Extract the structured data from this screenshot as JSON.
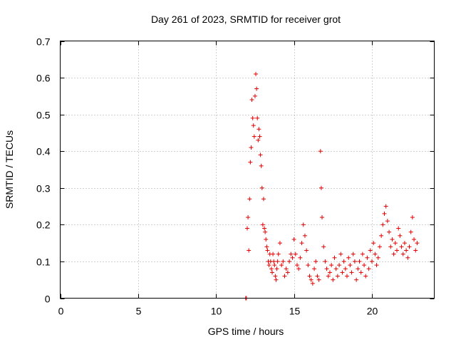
{
  "chart_data": {
    "type": "scatter",
    "title": "Day 261 of 2023, SRMTID for receiver grot",
    "xlabel": "GPS time / hours",
    "ylabel": "SRMTID / TECUs",
    "xlim": [
      0,
      24
    ],
    "ylim": [
      0,
      0.7
    ],
    "xticks": [
      0,
      5,
      10,
      15,
      20
    ],
    "yticks": [
      0,
      0.1,
      0.2,
      0.3,
      0.4,
      0.5,
      0.6,
      0.7
    ],
    "xtick_labels": [
      "0",
      "5",
      "10",
      "15",
      "20"
    ],
    "ytick_labels": [
      "0",
      "0.1",
      "0.2",
      "0.3",
      "0.4",
      "0.5",
      "0.6",
      "0.7"
    ],
    "grid": true,
    "marker": "+",
    "color": "#e00000",
    "series": [
      {
        "name": "SRMTID",
        "x": [
          11.9,
          11.95,
          12.0,
          12.05,
          12.1,
          12.15,
          12.2,
          12.25,
          12.3,
          12.35,
          12.4,
          12.45,
          12.5,
          12.55,
          12.6,
          12.65,
          12.7,
          12.75,
          12.8,
          12.85,
          12.9,
          12.95,
          13.0,
          13.05,
          13.1,
          13.15,
          13.2,
          13.25,
          13.3,
          13.35,
          13.4,
          13.45,
          13.5,
          13.55,
          13.6,
          13.65,
          13.7,
          13.75,
          13.8,
          13.85,
          13.9,
          13.95,
          14.0,
          14.1,
          14.2,
          14.3,
          14.4,
          14.5,
          14.6,
          14.7,
          14.8,
          14.9,
          15.0,
          15.1,
          15.2,
          15.3,
          15.4,
          15.5,
          15.6,
          15.7,
          15.8,
          15.9,
          16.0,
          16.1,
          16.2,
          16.3,
          16.4,
          16.5,
          16.6,
          16.7,
          16.75,
          16.8,
          16.9,
          17.0,
          17.1,
          17.2,
          17.3,
          17.4,
          17.5,
          17.6,
          17.7,
          17.8,
          17.9,
          18.0,
          18.1,
          18.2,
          18.3,
          18.4,
          18.5,
          18.6,
          18.7,
          18.8,
          18.9,
          19.0,
          19.1,
          19.2,
          19.3,
          19.4,
          19.5,
          19.6,
          19.7,
          19.8,
          19.9,
          20.0,
          20.1,
          20.2,
          20.3,
          20.4,
          20.5,
          20.6,
          20.7,
          20.8,
          20.9,
          21.0,
          21.1,
          21.2,
          21.3,
          21.4,
          21.5,
          21.6,
          21.7,
          21.8,
          21.9,
          22.0,
          22.1,
          22.2,
          22.3,
          22.4,
          22.5,
          22.6,
          22.7,
          22.8,
          22.9
        ],
        "y": [
          0.0,
          0.0,
          0.19,
          0.22,
          0.13,
          0.27,
          0.37,
          0.41,
          0.54,
          0.49,
          0.47,
          0.44,
          0.55,
          0.61,
          0.57,
          0.49,
          0.43,
          0.46,
          0.44,
          0.39,
          0.36,
          0.3,
          0.2,
          0.27,
          0.19,
          0.18,
          0.16,
          0.14,
          0.13,
          0.1,
          0.09,
          0.12,
          0.1,
          0.08,
          0.07,
          0.12,
          0.1,
          0.09,
          0.06,
          0.05,
          0.08,
          0.1,
          0.12,
          0.15,
          0.09,
          0.1,
          0.06,
          0.08,
          0.07,
          0.1,
          0.12,
          0.11,
          0.16,
          0.12,
          0.09,
          0.08,
          0.11,
          0.15,
          0.2,
          0.17,
          0.13,
          0.09,
          0.06,
          0.05,
          0.04,
          0.08,
          0.1,
          0.06,
          0.05,
          0.4,
          0.3,
          0.22,
          0.14,
          0.1,
          0.08,
          0.06,
          0.07,
          0.09,
          0.05,
          0.11,
          0.08,
          0.06,
          0.09,
          0.12,
          0.07,
          0.1,
          0.08,
          0.06,
          0.11,
          0.09,
          0.07,
          0.12,
          0.1,
          0.05,
          0.08,
          0.1,
          0.07,
          0.12,
          0.09,
          0.06,
          0.11,
          0.08,
          0.13,
          0.1,
          0.15,
          0.12,
          0.09,
          0.11,
          0.14,
          0.17,
          0.2,
          0.23,
          0.25,
          0.21,
          0.18,
          0.14,
          0.16,
          0.12,
          0.15,
          0.13,
          0.19,
          0.17,
          0.14,
          0.12,
          0.15,
          0.13,
          0.11,
          0.14,
          0.18,
          0.22,
          0.16,
          0.13,
          0.15
        ]
      }
    ]
  }
}
